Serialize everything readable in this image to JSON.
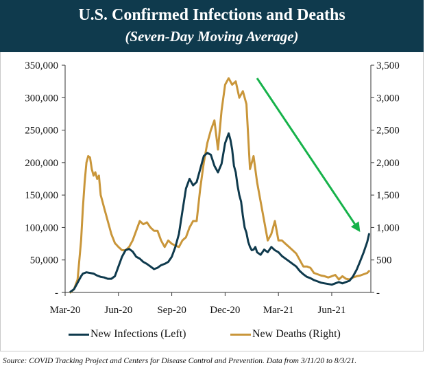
{
  "header": {
    "title": "U.S. Confirmed Infections and Deaths",
    "subtitle": "(Seven-Day Moving Average)"
  },
  "chart_data": {
    "type": "line",
    "title": "U.S. Confirmed Infections and Deaths",
    "subtitle": "(Seven-Day Moving Average)",
    "x_ticks": [
      "Mar-20",
      "Jun-20",
      "Sep-20",
      "Dec-20",
      "Mar-21",
      "Jun-21"
    ],
    "x_range_months": [
      0,
      17.2
    ],
    "y_left": {
      "ylim": [
        0,
        350000
      ],
      "ticks": [
        0,
        50000,
        100000,
        150000,
        200000,
        250000,
        300000,
        350000
      ],
      "tick_labels": [
        "-",
        "50,000",
        "100,000",
        "150,000",
        "200,000",
        "250,000",
        "300,000",
        "350,000"
      ]
    },
    "y_right": {
      "ylim": [
        0,
        3500
      ],
      "ticks": [
        0,
        500,
        1000,
        1500,
        2000,
        2500,
        3000,
        3500
      ],
      "tick_labels": [
        "-",
        "500",
        "1,000",
        "1,500",
        "2,000",
        "2,500",
        "3,000",
        "3,500"
      ]
    },
    "series": [
      {
        "name": "New Infections (Left)",
        "axis": "left",
        "color": "#0f3a4d",
        "x_months": [
          0.3,
          0.5,
          0.7,
          0.9,
          1.0,
          1.2,
          1.4,
          1.6,
          1.8,
          2.0,
          2.2,
          2.4,
          2.6,
          2.8,
          3.0,
          3.2,
          3.4,
          3.6,
          3.8,
          4.0,
          4.2,
          4.4,
          4.6,
          4.8,
          5.0,
          5.2,
          5.4,
          5.6,
          5.8,
          6.0,
          6.2,
          6.4,
          6.6,
          6.8,
          7.0,
          7.2,
          7.4,
          7.6,
          7.8,
          8.0,
          8.2,
          8.4,
          8.6,
          8.8,
          9.0,
          9.2,
          9.3,
          9.4,
          9.5,
          9.6,
          9.7,
          9.8,
          9.9,
          10.0,
          10.1,
          10.2,
          10.3,
          10.4,
          10.5,
          10.6,
          10.7,
          10.8,
          10.9,
          11.0,
          11.2,
          11.4,
          11.6,
          11.8,
          12.0,
          12.2,
          12.4,
          12.6,
          12.8,
          13.0,
          13.2,
          13.4,
          13.6,
          13.8,
          14.0,
          14.2,
          14.4,
          14.6,
          14.8,
          15.0,
          15.2,
          15.4,
          15.6,
          15.8,
          16.0,
          16.2,
          16.4,
          16.6,
          16.8,
          17.0,
          17.1
        ],
        "values": [
          1000,
          5000,
          15000,
          25000,
          29000,
          31000,
          30000,
          29000,
          26000,
          24000,
          23000,
          21000,
          21000,
          25000,
          40000,
          55000,
          65000,
          67000,
          63000,
          55000,
          52000,
          47000,
          44000,
          40000,
          36000,
          38000,
          42000,
          44000,
          47000,
          55000,
          70000,
          90000,
          125000,
          160000,
          175000,
          165000,
          170000,
          190000,
          210000,
          215000,
          212000,
          195000,
          185000,
          198000,
          230000,
          245000,
          235000,
          220000,
          195000,
          185000,
          165000,
          150000,
          140000,
          118000,
          100000,
          92000,
          78000,
          70000,
          65000,
          66000,
          70000,
          62000,
          60000,
          58000,
          66000,
          62000,
          70000,
          65000,
          62000,
          56000,
          52000,
          48000,
          44000,
          40000,
          33000,
          28000,
          24000,
          22000,
          19000,
          17000,
          15000,
          14000,
          13000,
          12000,
          14000,
          16000,
          14000,
          16000,
          18000,
          25000,
          35000,
          48000,
          62000,
          78000,
          90000
        ]
      },
      {
        "name": "New Deaths (Right)",
        "axis": "right",
        "color": "#c9963a",
        "x_months": [
          0.3,
          0.5,
          0.7,
          0.9,
          1.0,
          1.1,
          1.2,
          1.3,
          1.4,
          1.5,
          1.6,
          1.7,
          1.8,
          1.9,
          2.0,
          2.1,
          2.2,
          2.3,
          2.4,
          2.5,
          2.6,
          2.8,
          3.0,
          3.2,
          3.4,
          3.6,
          3.8,
          4.0,
          4.2,
          4.4,
          4.6,
          4.8,
          5.0,
          5.2,
          5.4,
          5.6,
          5.8,
          6.0,
          6.2,
          6.4,
          6.6,
          6.8,
          7.0,
          7.2,
          7.4,
          7.6,
          7.8,
          8.0,
          8.2,
          8.4,
          8.6,
          8.8,
          9.0,
          9.2,
          9.4,
          9.6,
          9.8,
          10.0,
          10.2,
          10.4,
          10.6,
          10.8,
          11.0,
          11.2,
          11.4,
          11.6,
          11.8,
          12.0,
          12.2,
          12.4,
          12.6,
          12.8,
          13.0,
          13.2,
          13.4,
          13.6,
          13.8,
          14.0,
          14.2,
          14.4,
          14.6,
          14.8,
          15.0,
          15.2,
          15.4,
          15.6,
          15.8,
          16.0,
          16.2,
          16.4,
          16.6,
          16.8,
          17.0,
          17.1
        ],
        "values": [
          0,
          50,
          200,
          800,
          1300,
          1700,
          2000,
          2100,
          2080,
          1900,
          1800,
          1850,
          1750,
          1800,
          1500,
          1400,
          1300,
          1200,
          1100,
          1000,
          900,
          760,
          700,
          650,
          650,
          700,
          800,
          950,
          1100,
          1050,
          1080,
          1000,
          950,
          950,
          800,
          700,
          800,
          750,
          720,
          700,
          800,
          850,
          1000,
          1100,
          1100,
          1600,
          2000,
          2300,
          2500,
          2650,
          2200,
          2800,
          3200,
          3300,
          3200,
          3250,
          3000,
          3100,
          2900,
          1900,
          2100,
          1700,
          1400,
          1100,
          800,
          900,
          1100,
          800,
          800,
          750,
          700,
          650,
          600,
          500,
          400,
          400,
          380,
          300,
          280,
          260,
          250,
          230,
          250,
          270,
          200,
          250,
          210,
          200,
          230,
          250,
          260,
          280,
          300,
          330
        ]
      }
    ],
    "legend": [
      "New Infections (Left)",
      "New Deaths (Right)"
    ],
    "legend_position": "bottom",
    "annotations": [
      {
        "type": "arrow",
        "color": "#16b24a",
        "from_month": 10.8,
        "from_value_left": 330000,
        "to_month": 16.6,
        "to_value_left": 93000
      }
    ]
  },
  "source": "Source: COVID Tracking Project and Centers for Disease Control and Prevention. Data from 3/11/20 to 8/3/21."
}
